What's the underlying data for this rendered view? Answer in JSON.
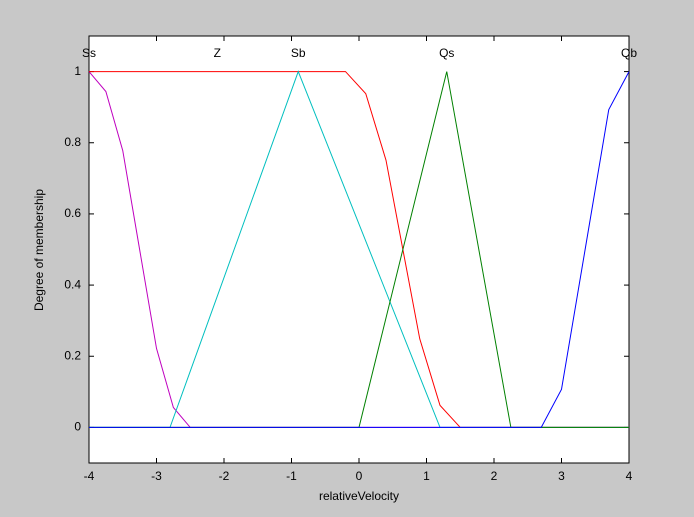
{
  "chart_data": {
    "type": "line",
    "xlabel": "relativeVelocity",
    "ylabel": "Degree of membership",
    "xlim": [
      -4,
      4
    ],
    "ylim": [
      -0.1,
      1.1
    ],
    "xticks": [
      -4,
      -3,
      -2,
      -1,
      0,
      1,
      2,
      3,
      4
    ],
    "yticks": [
      0,
      0.2,
      0.4,
      0.6,
      0.8,
      1
    ],
    "series": [
      {
        "name": "Ss",
        "color": "#bf00bf",
        "x": [
          -4,
          -3.75,
          -3.5,
          -3.25,
          -3,
          -2.75,
          -2.5,
          4
        ],
        "values": [
          1,
          0.944,
          0.778,
          0.5,
          0.222,
          0.056,
          0,
          0
        ]
      },
      {
        "name": "Z",
        "color": "#ff0000",
        "x": [
          -4,
          -0.2,
          0.1,
          0.4,
          0.65,
          0.9,
          1.2,
          1.5,
          4
        ],
        "values": [
          1,
          1,
          0.938,
          0.751,
          0.5,
          0.249,
          0.062,
          0,
          0
        ]
      },
      {
        "name": "Sb",
        "color": "#00bfbf",
        "x": [
          -4,
          -2.8,
          -0.9,
          1.2,
          4
        ],
        "values": [
          0,
          0,
          1,
          0,
          0
        ]
      },
      {
        "name": "Qs",
        "color": "#008000",
        "x": [
          -4,
          0,
          1.3,
          2.25,
          4
        ],
        "values": [
          0,
          0,
          1,
          0,
          0
        ]
      },
      {
        "name": "Qb",
        "color": "#0000ff",
        "x": [
          -4,
          2.7,
          3.0,
          3.35,
          3.7,
          4
        ],
        "values": [
          0,
          0,
          0.107,
          0.5,
          0.893,
          1
        ]
      }
    ]
  }
}
